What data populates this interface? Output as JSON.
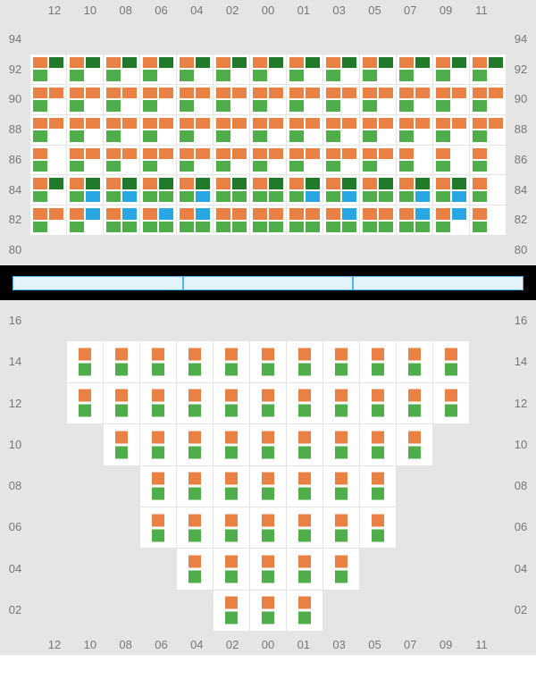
{
  "colors": {
    "o": "#e98044",
    "g": "#4fad4a",
    "d": "#207a2a",
    "b": "#29a7e2",
    "bg": "#e5e5e5",
    "cell": "#ffffff",
    "divider_bg": "#000000",
    "divider_fill": "#e3f4fd",
    "divider_border": "#4fb6ed",
    "axis_text": "#777777"
  },
  "x_labels": [
    "12",
    "10",
    "08",
    "06",
    "04",
    "02",
    "00",
    "01",
    "03",
    "05",
    "07",
    "09",
    "11"
  ],
  "top": {
    "y_labels": [
      "94",
      "92",
      "90",
      "88",
      "86",
      "84",
      "82",
      "80"
    ],
    "rows": [
      {
        "y": "94",
        "cells": [
          null,
          null,
          null,
          null,
          null,
          null,
          null,
          null,
          null,
          null,
          null,
          null,
          null
        ]
      },
      {
        "y": "92",
        "cells": [
          [
            "o",
            "d",
            "g",
            "e"
          ],
          [
            "o",
            "d",
            "g",
            "e"
          ],
          [
            "o",
            "d",
            "g",
            "e"
          ],
          [
            "o",
            "d",
            "g",
            "e"
          ],
          [
            "o",
            "d",
            "g",
            "e"
          ],
          [
            "o",
            "d",
            "g",
            "e"
          ],
          [
            "o",
            "d",
            "g",
            "e"
          ],
          [
            "o",
            "d",
            "g",
            "e"
          ],
          [
            "o",
            "d",
            "g",
            "e"
          ],
          [
            "o",
            "d",
            "g",
            "e"
          ],
          [
            "o",
            "d",
            "g",
            "e"
          ],
          [
            "o",
            "d",
            "g",
            "e"
          ],
          [
            "o",
            "d",
            "g",
            "e"
          ]
        ]
      },
      {
        "y": "90",
        "cells": [
          [
            "o",
            "o",
            "g",
            "e"
          ],
          [
            "o",
            "o",
            "g",
            "e"
          ],
          [
            "o",
            "o",
            "g",
            "e"
          ],
          [
            "o",
            "o",
            "g",
            "e"
          ],
          [
            "o",
            "o",
            "g",
            "e"
          ],
          [
            "o",
            "o",
            "g",
            "e"
          ],
          [
            "o",
            "o",
            "g",
            "e"
          ],
          [
            "o",
            "o",
            "g",
            "e"
          ],
          [
            "o",
            "o",
            "g",
            "e"
          ],
          [
            "o",
            "o",
            "g",
            "e"
          ],
          [
            "o",
            "o",
            "g",
            "e"
          ],
          [
            "o",
            "o",
            "g",
            "e"
          ],
          [
            "o",
            "o",
            "g",
            "e"
          ]
        ]
      },
      {
        "y": "88",
        "cells": [
          [
            "o",
            "o",
            "g",
            "e"
          ],
          [
            "o",
            "o",
            "g",
            "e"
          ],
          [
            "o",
            "o",
            "g",
            "e"
          ],
          [
            "o",
            "o",
            "g",
            "e"
          ],
          [
            "o",
            "o",
            "g",
            "e"
          ],
          [
            "o",
            "o",
            "g",
            "e"
          ],
          [
            "o",
            "o",
            "g",
            "e"
          ],
          [
            "o",
            "o",
            "g",
            "e"
          ],
          [
            "o",
            "o",
            "g",
            "e"
          ],
          [
            "o",
            "o",
            "g",
            "e"
          ],
          [
            "o",
            "o",
            "g",
            "e"
          ],
          [
            "o",
            "o",
            "g",
            "e"
          ],
          [
            "o",
            "o",
            "g",
            "e"
          ]
        ]
      },
      {
        "y": "86",
        "cells": [
          [
            "o",
            "e",
            "g",
            "e"
          ],
          [
            "o",
            "o",
            "g",
            "e"
          ],
          [
            "o",
            "o",
            "g",
            "e"
          ],
          [
            "o",
            "o",
            "g",
            "e"
          ],
          [
            "o",
            "o",
            "g",
            "e"
          ],
          [
            "o",
            "o",
            "g",
            "e"
          ],
          [
            "o",
            "o",
            "g",
            "e"
          ],
          [
            "o",
            "o",
            "g",
            "e"
          ],
          [
            "o",
            "o",
            "g",
            "e"
          ],
          [
            "o",
            "o",
            "g",
            "e"
          ],
          [
            "o",
            "e",
            "g",
            "e"
          ],
          [
            "o",
            "e",
            "g",
            "e"
          ],
          [
            "o",
            "e",
            "g",
            "e"
          ]
        ]
      },
      {
        "y": "84",
        "cells": [
          [
            "o",
            "d",
            "g",
            "e"
          ],
          [
            "o",
            "d",
            "g",
            "b"
          ],
          [
            "o",
            "d",
            "g",
            "b"
          ],
          [
            "o",
            "d",
            "g",
            "g"
          ],
          [
            "o",
            "d",
            "g",
            "b"
          ],
          [
            "o",
            "d",
            "g",
            "g"
          ],
          [
            "o",
            "d",
            "g",
            "g"
          ],
          [
            "o",
            "d",
            "g",
            "b"
          ],
          [
            "o",
            "d",
            "g",
            "b"
          ],
          [
            "o",
            "d",
            "g",
            "g"
          ],
          [
            "o",
            "d",
            "g",
            "b"
          ],
          [
            "o",
            "d",
            "g",
            "b"
          ],
          [
            "o",
            "e",
            "g",
            "e"
          ]
        ]
      },
      {
        "y": "82",
        "cells": [
          [
            "o",
            "o",
            "g",
            "e"
          ],
          [
            "o",
            "b",
            "g",
            "e"
          ],
          [
            "o",
            "b",
            "g",
            "g"
          ],
          [
            "o",
            "b",
            "g",
            "g"
          ],
          [
            "o",
            "b",
            "g",
            "g"
          ],
          [
            "o",
            "o",
            "g",
            "g"
          ],
          [
            "o",
            "o",
            "g",
            "g"
          ],
          [
            "o",
            "o",
            "g",
            "g"
          ],
          [
            "o",
            "b",
            "g",
            "g"
          ],
          [
            "o",
            "o",
            "g",
            "g"
          ],
          [
            "o",
            "b",
            "g",
            "g"
          ],
          [
            "o",
            "b",
            "g",
            "e"
          ],
          [
            "o",
            "e",
            "g",
            "e"
          ]
        ]
      },
      {
        "y": "80",
        "cells": [
          null,
          null,
          null,
          null,
          null,
          null,
          null,
          null,
          null,
          null,
          null,
          null,
          null
        ]
      }
    ]
  },
  "bottom": {
    "y_labels": [
      "16",
      "14",
      "12",
      "10",
      "08",
      "06",
      "04",
      "02"
    ],
    "rows": [
      {
        "y": "16",
        "cells": [
          0,
          0,
          0,
          0,
          0,
          0,
          0,
          0,
          0,
          0,
          0,
          0,
          0
        ]
      },
      {
        "y": "14",
        "cells": [
          0,
          1,
          1,
          1,
          1,
          1,
          1,
          1,
          1,
          1,
          1,
          1,
          0
        ]
      },
      {
        "y": "12",
        "cells": [
          0,
          1,
          1,
          1,
          1,
          1,
          1,
          1,
          1,
          1,
          1,
          1,
          0
        ]
      },
      {
        "y": "10",
        "cells": [
          0,
          0,
          1,
          1,
          1,
          1,
          1,
          1,
          1,
          1,
          1,
          0,
          0
        ]
      },
      {
        "y": "08",
        "cells": [
          0,
          0,
          0,
          1,
          1,
          1,
          1,
          1,
          1,
          1,
          0,
          0,
          0
        ]
      },
      {
        "y": "06",
        "cells": [
          0,
          0,
          0,
          1,
          1,
          1,
          1,
          1,
          1,
          1,
          0,
          0,
          0
        ]
      },
      {
        "y": "04",
        "cells": [
          0,
          0,
          0,
          0,
          1,
          1,
          1,
          1,
          1,
          0,
          0,
          0,
          0
        ]
      },
      {
        "y": "02",
        "cells": [
          0,
          0,
          0,
          0,
          0,
          1,
          1,
          1,
          0,
          0,
          0,
          0,
          0
        ]
      }
    ]
  }
}
